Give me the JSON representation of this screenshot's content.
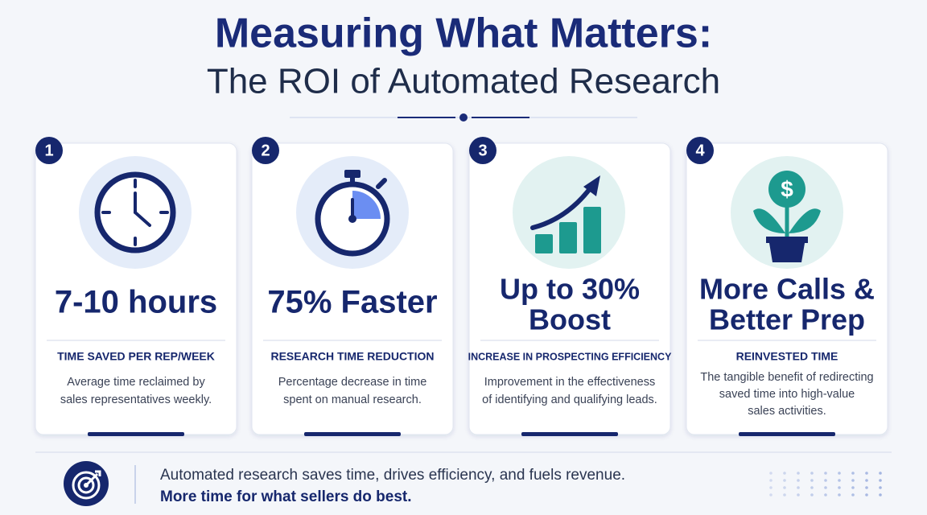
{
  "header": {
    "title": "Measuring What Matters:",
    "subtitle": "The ROI of Automated Research"
  },
  "cards": [
    {
      "number": "1",
      "metric": [
        "7-10 hours"
      ],
      "label": "TIME SAVED PER REP/WEEK",
      "description": [
        "Average time reclaimed by",
        "sales representatives weekly."
      ]
    },
    {
      "number": "2",
      "metric": [
        "75% Faster"
      ],
      "label": "RESEARCH TIME REDUCTION",
      "description": [
        "Percentage decrease in time",
        "spent on manual research."
      ]
    },
    {
      "number": "3",
      "metric": [
        "Up to 30%",
        "Boost"
      ],
      "label": "INCREASE IN PROSPECTING EFFICIENCY",
      "description": [
        "Improvement in the effectiveness",
        "of identifying and qualifying leads."
      ]
    },
    {
      "number": "4",
      "metric": [
        "More Calls &",
        "Better Prep"
      ],
      "label": "REINVESTED TIME",
      "description": [
        "The tangible benefit of redirecting",
        "saved time into high-value",
        "sales activities."
      ]
    }
  ],
  "footer": {
    "line1": "Automated research saves time, drives efficiency, and fuels revenue.",
    "line2": "More time for what sellers do best."
  }
}
